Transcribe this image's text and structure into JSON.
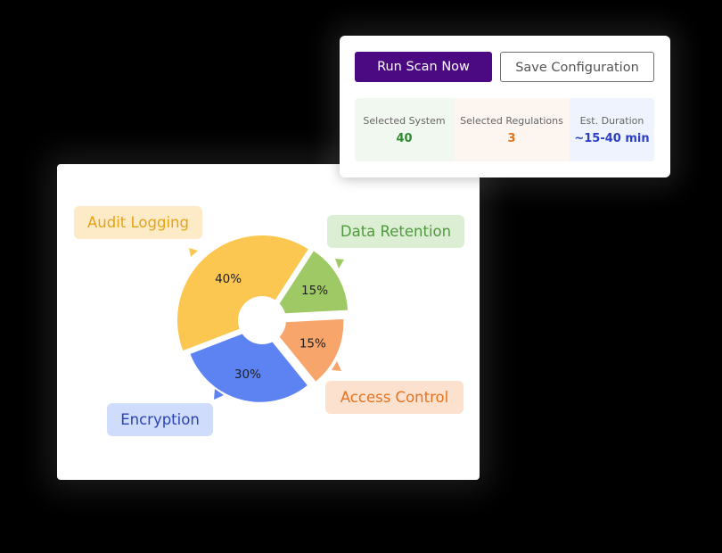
{
  "actions": {
    "run_scan_label": "Run Scan Now",
    "save_config_label": "Save Configuration"
  },
  "summary": [
    {
      "label": "Selected System",
      "value": "40",
      "value_color": "#2e8b2e",
      "bg": "#f1f8ef"
    },
    {
      "label": "Selected Regulations",
      "value": "3",
      "value_color": "#e0741f",
      "bg": "#fdf5f0"
    },
    {
      "label": "Est. Duration",
      "value": "~15-40 min",
      "value_color": "#2a3fc4",
      "bg": "#eff3fd"
    }
  ],
  "colors": {
    "run_button_bg": "#4b0a82",
    "background": "#000000"
  },
  "chart_data": {
    "type": "pie",
    "style": "donut with offset slices",
    "slices": [
      {
        "name": "Audit Logging",
        "value": 40,
        "label": "40%",
        "color": "#fbc751",
        "pill_bg": "#fdebc7",
        "text_color": "#e5a417"
      },
      {
        "name": "Data Retention",
        "value": 15,
        "label": "15%",
        "color": "#9fc965",
        "pill_bg": "#dcefd5",
        "text_color": "#4f9a3c"
      },
      {
        "name": "Access Control",
        "value": 15,
        "label": "15%",
        "color": "#f7a56a",
        "pill_bg": "#fde1cf",
        "text_color": "#e5731d"
      },
      {
        "name": "Encryption",
        "value": 30,
        "label": "30%",
        "color": "#5c83f1",
        "pill_bg": "#cfdcfb",
        "text_color": "#2a44b8"
      }
    ]
  }
}
